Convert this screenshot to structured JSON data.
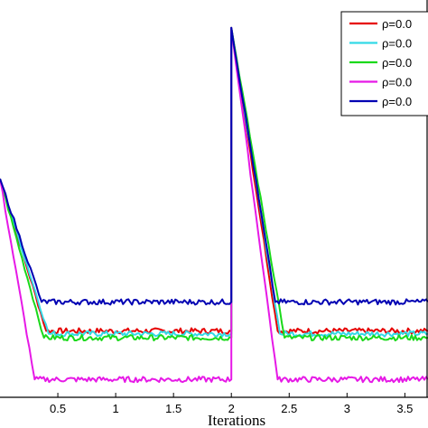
{
  "chart_data": {
    "type": "line",
    "title": "",
    "xlabel": "Iterations",
    "ylabel": "",
    "xlim": [
      0.0,
      3.7
    ],
    "ylim": [
      0,
      1.0
    ],
    "x_ticks": [
      0.5,
      1,
      1.5,
      2,
      2.5,
      3,
      3.5
    ],
    "x_tick_labels": [
      "0.5",
      "1",
      "1.5",
      "2",
      "2.5",
      "3",
      "3.5"
    ],
    "grid": false,
    "legend_position": "top-right",
    "series": [
      {
        "name": "ρ=0.0",
        "color": "#e60000",
        "x": [
          0,
          0.4,
          2.0,
          2.0,
          2.4,
          3.7
        ],
        "y": [
          0.55,
          0.167,
          0.167,
          0.93,
          0.167,
          0.167
        ]
      },
      {
        "name": "ρ=0.0",
        "color": "#33d9e6",
        "x": [
          0,
          0.42,
          2.0,
          2.0,
          2.42,
          3.7
        ],
        "y": [
          0.55,
          0.16,
          0.16,
          0.93,
          0.16,
          0.16
        ]
      },
      {
        "name": "ρ=0.0",
        "color": "#1ad91a",
        "x": [
          0,
          0.38,
          2.0,
          2.0,
          2.46,
          3.7
        ],
        "y": [
          0.55,
          0.15,
          0.15,
          0.93,
          0.15,
          0.15
        ]
      },
      {
        "name": "ρ=0.0",
        "color": "#e619e6",
        "x": [
          0,
          0.3,
          2.0,
          2.0,
          2.4,
          3.7
        ],
        "y": [
          0.55,
          0.045,
          0.045,
          0.93,
          0.045,
          0.045
        ]
      },
      {
        "name": "ρ=0.0",
        "color": "#0000b3",
        "x": [
          0,
          0.36,
          2.0,
          2.0,
          2.38,
          3.7
        ],
        "y": [
          0.55,
          0.24,
          0.24,
          0.93,
          0.24,
          0.24
        ]
      }
    ]
  }
}
